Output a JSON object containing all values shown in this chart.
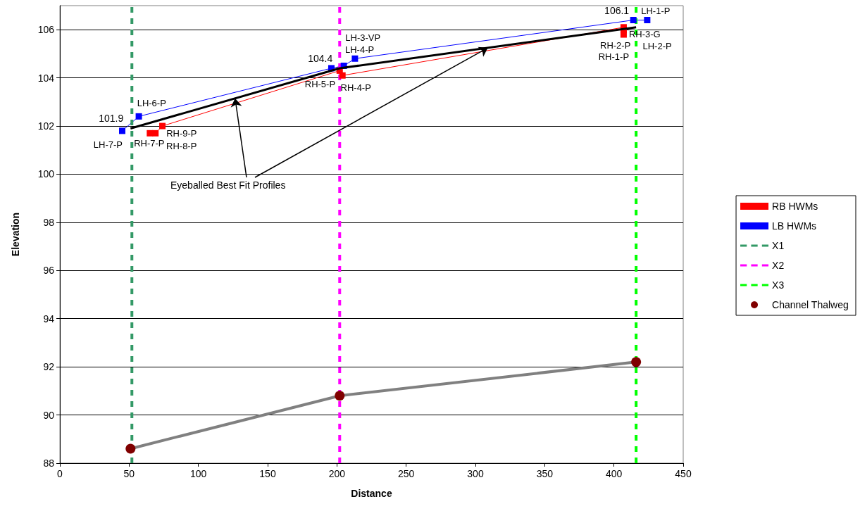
{
  "chart_data": {
    "type": "line",
    "xlabel": "Distance",
    "ylabel": "Elevation",
    "xlim": [
      0,
      450
    ],
    "xticks": [
      0,
      50,
      100,
      150,
      200,
      250,
      300,
      350,
      400,
      450
    ],
    "ylim": [
      88,
      107
    ],
    "yticks": [
      88,
      90,
      92,
      94,
      96,
      98,
      100,
      102,
      104,
      106
    ],
    "grid": "y",
    "legend": "right",
    "annotations": [
      {
        "text": "Eyeballed Best Fit Profiles",
        "x": 126.5,
        "y": 103.15
      }
    ],
    "series": [
      {
        "name": "RB HWMs",
        "color": "#ff0000",
        "marker": "square",
        "x": [
          65,
          69,
          74,
          202,
          204,
          407,
          407,
          407
        ],
        "values": [
          101.7,
          101.7,
          102.0,
          104.3,
          104.1,
          106.1,
          106.0,
          105.8
        ],
        "value_labels": [
          "RH-7-P",
          "RH-9-P",
          "RH-8-P",
          "RH-4-P",
          "RH-5-P",
          "RH-2-P",
          "RH-3-G",
          "RH-1-P"
        ]
      },
      {
        "name": "LB HWMs",
        "color": "#0000ff",
        "marker": "square",
        "x": [
          45,
          57,
          196,
          205,
          213,
          414,
          424
        ],
        "values": [
          101.8,
          102.4,
          104.4,
          104.5,
          104.8,
          106.4,
          106.4
        ],
        "value_labels": [
          "LH-7-P",
          "LH-6-P",
          null,
          "LH-4-P",
          "LH-3-VP",
          "LH-1-P",
          "LH-2-P"
        ]
      },
      {
        "name": "X1",
        "color": "#339966",
        "marker": "none",
        "line_style": "dashed",
        "x": [
          52,
          52
        ],
        "values": [
          88,
          107
        ]
      },
      {
        "name": "X2",
        "color": "#ff00ff",
        "marker": "none",
        "line_style": "dashed",
        "x": [
          202,
          202
        ],
        "values": [
          88,
          107
        ]
      },
      {
        "name": "X3",
        "color": "#00ff00",
        "marker": "none",
        "line_style": "dashed",
        "x": [
          416,
          416
        ],
        "values": [
          88,
          107
        ]
      },
      {
        "name": "Channel Thalweg",
        "color": "#808080",
        "colors": [
          "#800000",
          "#800000",
          "#800000"
        ],
        "marker": "circle",
        "x": [
          51,
          202,
          416
        ],
        "values": [
          88.6,
          90.8,
          92.2
        ]
      },
      {
        "color": "#000000",
        "marker": "none",
        "x": [
          51,
          202,
          416
        ],
        "values": [
          101.9,
          104.4,
          106.1
        ],
        "data_labels": true
      }
    ]
  }
}
